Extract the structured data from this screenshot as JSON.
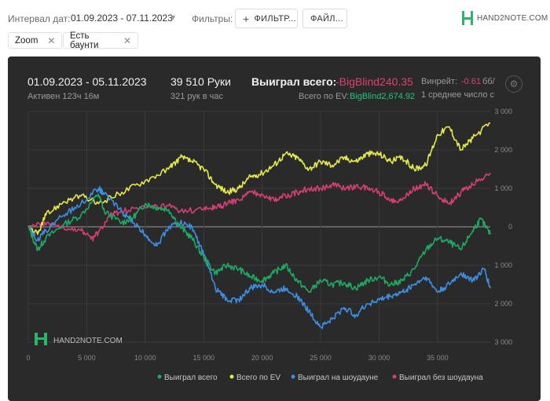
{
  "filters": {
    "date_interval_label": "Интервал дат:",
    "date_range": "01.09.2023 - 07.11.2023",
    "filters_label": "Фильтры:",
    "filter_button": "ФИЛЬТР...",
    "file_button": "ФАЙЛ...",
    "logo_text": "HAND2NOTE.COM"
  },
  "chips": [
    {
      "label": "Zoom"
    },
    {
      "label": "Есть баунти"
    }
  ],
  "stats": {
    "period": "01.09.2023 - 05.11.2023",
    "active": "Активен 123ч 16м",
    "hands": "39 510 Руки",
    "hands_per_hour": "321 рук в час",
    "won_total_label": "Выиграл всего:",
    "won_total_value": "-BigBlind240.35",
    "ev_label": "Всего по EV:",
    "ev_value": "BigBlind2,674.92",
    "winrate_label": "Винрейт:",
    "winrate_value": "-0.61",
    "winrate_unit": "бб/",
    "avg_text": "1 среднее число с"
  },
  "watermark": "HAND2NOTE.COM",
  "colors": {
    "won": "#1fa862",
    "ev": "#e4e84a",
    "showdown": "#3d8ee0",
    "nonshowdown": "#d43f72",
    "panel": "#2a2a2b"
  },
  "chart_data": {
    "type": "line",
    "xlim": [
      0,
      39510
    ],
    "ylim": [
      -3000,
      3000
    ],
    "x_ticks": [
      "0",
      "5 000",
      "10 000",
      "15 000",
      "20 000",
      "25 000",
      "30 000",
      "35 000"
    ],
    "y_ticks": [
      "3 000",
      "2 000",
      "1 000",
      "0",
      "1 000",
      "2 000",
      "3 000"
    ],
    "legend": [
      "Выиграл всего",
      "Всего по EV",
      "Выиграл на шоудауне",
      "Выиграл без шоудауна"
    ],
    "series": [
      {
        "name": "Выиграл всего",
        "color": "#1fa862",
        "x": [
          0,
          800,
          1500,
          3000,
          4500,
          6000,
          6500,
          8000,
          9000,
          10000,
          11000,
          12000,
          13000,
          14000,
          15000,
          16000,
          17000,
          18000,
          19000,
          20000,
          21000,
          22000,
          23000,
          24000,
          25000,
          26000,
          27000,
          28000,
          29000,
          30000,
          31000,
          32000,
          33000,
          34000,
          35000,
          36000,
          37000,
          38000,
          38700,
          39510
        ],
        "y": [
          0,
          -600,
          -300,
          50,
          300,
          850,
          400,
          100,
          250,
          600,
          500,
          450,
          0,
          -300,
          -800,
          -1200,
          -1000,
          -1100,
          -1300,
          -1400,
          -1200,
          -1000,
          -1400,
          -1700,
          -1400,
          -1500,
          -1450,
          -1600,
          -1400,
          -1300,
          -1500,
          -1400,
          -1100,
          -600,
          -300,
          -400,
          -600,
          -100,
          200,
          -200
        ]
      },
      {
        "name": "Всего по EV",
        "color": "#e4e84a",
        "x": [
          0,
          800,
          1500,
          3000,
          4500,
          6000,
          8000,
          10000,
          12000,
          13000,
          14000,
          15000,
          16000,
          17000,
          18000,
          19000,
          20000,
          21000,
          22000,
          23000,
          24000,
          25000,
          26000,
          27000,
          28000,
          29000,
          30000,
          31000,
          32000,
          33000,
          34000,
          35000,
          36000,
          37000,
          38000,
          39510
        ],
        "y": [
          0,
          -200,
          300,
          650,
          800,
          600,
          900,
          1200,
          1500,
          1800,
          1700,
          1500,
          1100,
          900,
          1000,
          1300,
          1400,
          1600,
          1900,
          1800,
          1500,
          1700,
          1600,
          1800,
          1700,
          1900,
          1900,
          1700,
          1800,
          1500,
          1600,
          2400,
          2600,
          2000,
          2300,
          2700
        ]
      },
      {
        "name": "Выиграл на шоудауне",
        "color": "#3d8ee0",
        "x": [
          0,
          800,
          1500,
          3000,
          4500,
          6000,
          6500,
          8000,
          9000,
          10000,
          11000,
          12000,
          13000,
          14000,
          15000,
          16000,
          17000,
          18000,
          19000,
          20000,
          21000,
          22000,
          23000,
          24000,
          25000,
          26000,
          27000,
          28000,
          29000,
          30000,
          31000,
          32000,
          33000,
          34000,
          35000,
          36000,
          37000,
          38000,
          39000,
          39510
        ],
        "y": [
          0,
          -350,
          -100,
          300,
          600,
          1000,
          850,
          400,
          100,
          -200,
          -500,
          0,
          100,
          0,
          -700,
          -1600,
          -1900,
          -1900,
          -1600,
          -1500,
          -1700,
          -1600,
          -1800,
          -2200,
          -2600,
          -2400,
          -2100,
          -2300,
          -2000,
          -1900,
          -1800,
          -1700,
          -1500,
          -1300,
          -1700,
          -1500,
          -1200,
          -1400,
          -1100,
          -1600
        ]
      },
      {
        "name": "Выиграл без шоудауна",
        "color": "#d43f72",
        "x": [
          0,
          1500,
          3000,
          4500,
          5500,
          6000,
          7000,
          8000,
          10000,
          12000,
          13000,
          15000,
          16000,
          17000,
          18000,
          19000,
          20000,
          21000,
          22000,
          23000,
          24000,
          25000,
          26000,
          27000,
          28000,
          29000,
          30000,
          31000,
          32000,
          33000,
          34000,
          35000,
          36000,
          37000,
          38000,
          39510
        ],
        "y": [
          0,
          50,
          0,
          -100,
          -300,
          -150,
          300,
          400,
          500,
          550,
          400,
          450,
          500,
          600,
          700,
          900,
          850,
          700,
          800,
          900,
          1000,
          1000,
          1100,
          1000,
          1050,
          1000,
          900,
          700,
          700,
          1000,
          1100,
          800,
          600,
          900,
          1100,
          1400
        ]
      }
    ]
  }
}
